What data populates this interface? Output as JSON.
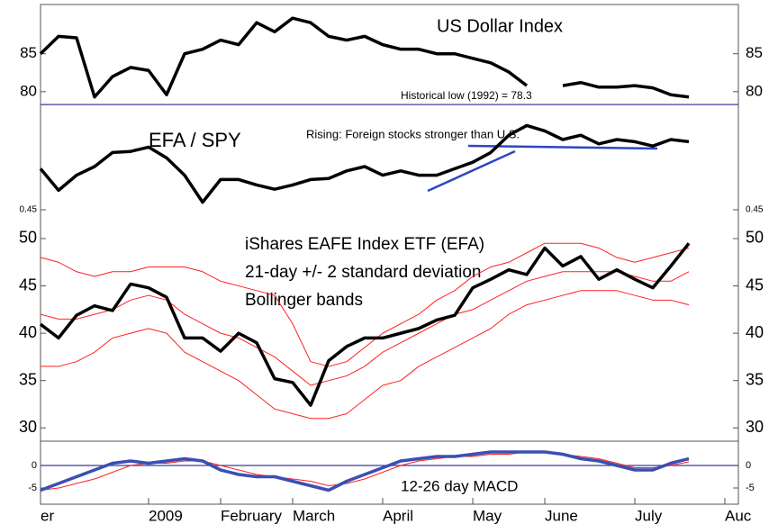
{
  "chart_data": [
    {
      "type": "line",
      "title": "US Dollar Index",
      "ylim": [
        63,
        91.5
      ],
      "yticks": [
        80,
        85
      ],
      "annotation": {
        "text": "Historical low (1992) = 78.3",
        "value": 78.3,
        "color": "#3b3b9a"
      },
      "series": [
        {
          "color": "#000000",
          "values": [
            85.0,
            87.3,
            87.1,
            79.3,
            82.0,
            83.2,
            82.8,
            79.6,
            85.0,
            85.6,
            86.8,
            86.2,
            89.1,
            87.9,
            89.7,
            89.1,
            87.3,
            86.8,
            87.3,
            86.2,
            85.6,
            85.6,
            85.0,
            85.0,
            84.4,
            83.8,
            82.6,
            80.8,
            null,
            80.8,
            81.2,
            80.6,
            80.6,
            80.8,
            80.5,
            79.6,
            79.3,
            null,
            null
          ]
        }
      ]
    },
    {
      "type": "line",
      "title": "EFA / SPY",
      "ylim": [
        0.44,
        0.64
      ],
      "yticks": [
        0.45
      ],
      "annotation": {
        "text": "Rising: Foreign stocks stronger than U.S."
      },
      "series": [
        {
          "color": "#000000",
          "values": [
            0.488,
            0.468,
            0.482,
            0.49,
            0.503,
            0.504,
            0.508,
            0.498,
            0.482,
            0.457,
            0.478,
            0.478,
            0.473,
            0.469,
            0.473,
            0.478,
            0.479,
            0.486,
            0.49,
            0.482,
            0.486,
            0.482,
            0.482,
            0.488,
            0.494,
            0.503,
            0.519,
            0.528,
            0.523,
            0.515,
            0.519,
            0.511,
            0.515,
            0.513,
            0.509,
            0.515,
            0.513,
            null,
            null
          ]
        }
      ]
    },
    {
      "type": "line",
      "title": [
        "iShares EAFE Index ETF (EFA)",
        "21-day +/- 2 standard deviation",
        "Bollinger bands"
      ],
      "ylim": [
        28.6,
        51.9
      ],
      "yticks": [
        30,
        35,
        40,
        45,
        50
      ],
      "series": [
        {
          "color": "#ff2020",
          "values": [
            48,
            47.5,
            46.5,
            46,
            46.5,
            46.5,
            47,
            47,
            47,
            46.5,
            45.5,
            45,
            44.5,
            44,
            41,
            37,
            36.5,
            37,
            38.5,
            40,
            41,
            42,
            43.5,
            44.5,
            46,
            47,
            47.5,
            48.5,
            49.5,
            49.5,
            49.5,
            49,
            48,
            47.5,
            48,
            48.5,
            49,
            null,
            null
          ]
        },
        {
          "color": "#ff2020",
          "values": [
            42,
            41.5,
            41.5,
            42,
            42.5,
            43.5,
            44,
            43.5,
            42,
            41,
            40,
            39.5,
            38.5,
            37.5,
            36,
            34.5,
            35,
            35.5,
            36.5,
            38,
            39,
            40,
            41,
            42,
            42.5,
            43.5,
            44.5,
            45.5,
            46,
            46.5,
            46.5,
            46.5,
            46.5,
            46,
            45.5,
            45.5,
            46.5,
            null,
            null
          ]
        },
        {
          "color": "#ff2020",
          "values": [
            36.5,
            36.5,
            37,
            38,
            39.5,
            40,
            40.5,
            40,
            38,
            37,
            36,
            35,
            33.5,
            32,
            31.5,
            31,
            31,
            31.5,
            33,
            34.5,
            35,
            36.5,
            37.5,
            38.5,
            39.5,
            40.5,
            42,
            43,
            43.5,
            44,
            44.5,
            44.5,
            44.5,
            44,
            43.5,
            43.5,
            43,
            null,
            null
          ]
        },
        {
          "color": "#000000",
          "values": [
            40.95,
            39.5,
            41.9,
            42.9,
            42.4,
            45.2,
            44.8,
            43.8,
            39.5,
            39.5,
            38.1,
            40,
            39,
            35.2,
            34.8,
            32.4,
            37.1,
            38.6,
            39.5,
            39.5,
            40,
            40.5,
            41.4,
            41.9,
            44.8,
            45.7,
            46.7,
            46.2,
            49,
            47.1,
            48.1,
            45.7,
            46.7,
            45.7,
            44.8,
            47.1,
            49.5,
            null,
            null
          ]
        }
      ]
    },
    {
      "type": "line",
      "title": "12-26 day MACD",
      "ylim": [
        -8.6,
        5.4
      ],
      "yticks": [
        -5,
        0
      ],
      "hline": 0,
      "categories": [
        "er",
        null,
        null,
        null,
        null,
        null,
        "2009",
        null,
        null,
        null,
        "February",
        null,
        null,
        null,
        "March",
        null,
        null,
        null,
        null,
        "April",
        null,
        null,
        null,
        null,
        "May",
        null,
        null,
        null,
        "June",
        null,
        null,
        null,
        null,
        "July",
        null,
        null,
        null,
        null,
        "Auc"
      ],
      "series": [
        {
          "color": "#ff2020",
          "values": [
            -5.5,
            -5,
            -4,
            -3,
            -1.5,
            0,
            0.5,
            0.5,
            1,
            1,
            0,
            -1,
            -2,
            -2.5,
            -3,
            -3.5,
            -4.5,
            -4,
            -3,
            -1.5,
            0,
            1,
            1.5,
            2,
            2,
            2.5,
            2.5,
            3,
            3,
            2.5,
            2,
            1.5,
            0.5,
            -0.5,
            -0.5,
            0,
            0.8,
            null,
            null
          ]
        },
        {
          "color": "#3a4fb5",
          "values": [
            -5.5,
            -4,
            -2.5,
            -1,
            0.5,
            1,
            0.5,
            1,
            1.5,
            1,
            -1,
            -2,
            -2.5,
            -2.5,
            -3.5,
            -4.5,
            -5.5,
            -3.5,
            -2,
            -0.5,
            1,
            1.5,
            2,
            2,
            2.5,
            3,
            3,
            3,
            3,
            2.5,
            1.5,
            1,
            0,
            -1,
            -1,
            0.5,
            1.5,
            null,
            null
          ]
        }
      ]
    }
  ]
}
